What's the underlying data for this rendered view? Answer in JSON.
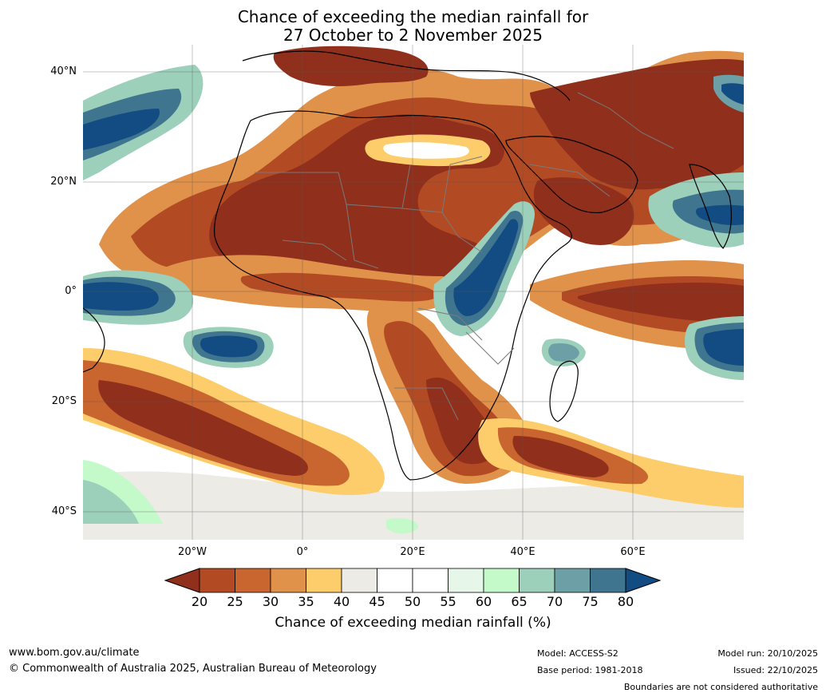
{
  "title": {
    "line1": "Chance of exceeding the median rainfall for",
    "line2": "27 October to 2 November 2025"
  },
  "map": {
    "lat_ticks": [
      "40°N",
      "20°N",
      "0°",
      "20°S",
      "40°S"
    ],
    "lon_ticks": [
      "20°W",
      "0°",
      "20°E",
      "40°E",
      "60°E"
    ],
    "palette": {
      "c20": "#8f2f1c",
      "c25": "#b24a24",
      "c30": "#c9652f",
      "c35": "#e0914a",
      "c40": "#fccd6a",
      "c45": "#ecebe6",
      "c50": "#ffffff",
      "c55": "#ffffff",
      "c60": "#e6f6e8",
      "c65": "#c4f9ca",
      "c70": "#9cd0bb",
      "c75": "#6d9fa7",
      "c80": "#3f758e",
      "c85": "#124c82"
    }
  },
  "colorbar": {
    "ticks": [
      "20",
      "25",
      "30",
      "35",
      "40",
      "45",
      "50",
      "55",
      "60",
      "65",
      "70",
      "75",
      "80"
    ],
    "colors": [
      "#8f2f1c",
      "#b24a24",
      "#c9652f",
      "#e0914a",
      "#fccd6a",
      "#ecebe6",
      "#ffffff",
      "#ffffff",
      "#e6f6e8",
      "#c4f9ca",
      "#9cd0bb",
      "#6d9fa7",
      "#3f758e",
      "#124c82"
    ],
    "label": "Chance of exceeding median rainfall (%)"
  },
  "footer": {
    "website": "www.bom.gov.au/climate",
    "copyright": "© Commonwealth of Australia 2025, Australian Bureau of Meteorology",
    "model": "Model: ACCESS-S2",
    "base_period": "Base period: 1981-2018",
    "model_run": "Model run: 20/10/2025",
    "issued": "Issued: 22/10/2025",
    "disclaimer": "Boundaries are not considered authoritative"
  }
}
